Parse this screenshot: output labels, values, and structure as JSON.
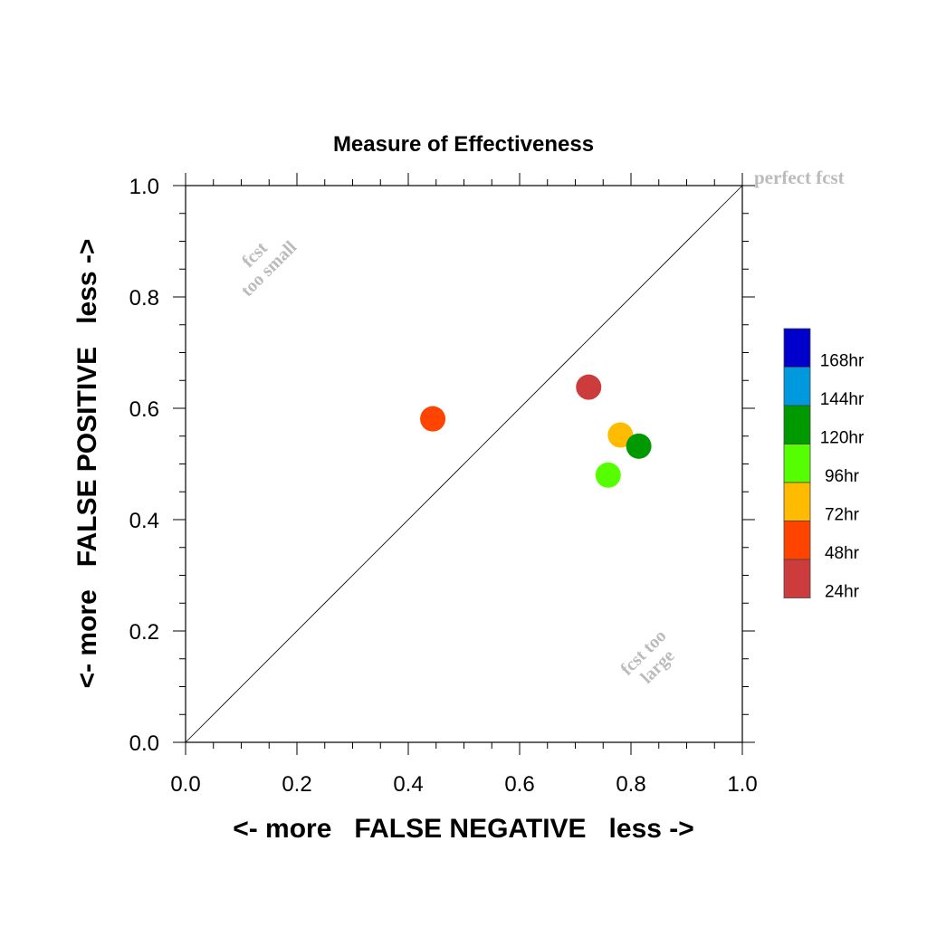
{
  "chart_data": {
    "type": "scatter",
    "title": "Measure of Effectiveness",
    "xlabel": "<- more   FALSE NEGATIVE   less ->",
    "ylabel": "<- more   FALSE POSITIVE   less ->",
    "xlim": [
      0.0,
      1.0
    ],
    "ylim": [
      0.0,
      1.0
    ],
    "xticks": [
      "0.0",
      "0.2",
      "0.4",
      "0.6",
      "0.8",
      "1.0"
    ],
    "yticks": [
      "0.0",
      "0.2",
      "0.4",
      "0.6",
      "0.8",
      "1.0"
    ],
    "grid": false,
    "reference_line": {
      "from": [
        0,
        0
      ],
      "to": [
        1,
        1
      ]
    },
    "annotations": {
      "perfect": "perfect fcst",
      "too_small_line1": "fcst",
      "too_small_line2": "too small",
      "too_large_line1": "fcst too",
      "too_large_line2": "large"
    },
    "points": [
      {
        "x": 0.724,
        "y": 0.638,
        "color": "#cc3c3c"
      },
      {
        "x": 0.444,
        "y": 0.581,
        "color": "#ff4400"
      },
      {
        "x": 0.781,
        "y": 0.552,
        "color": "#ffbb00"
      },
      {
        "x": 0.759,
        "y": 0.48,
        "color": "#55ff00"
      },
      {
        "x": 0.814,
        "y": 0.532,
        "color": "#009900"
      }
    ],
    "legend": {
      "placement": "right",
      "entries": [
        {
          "label": "168hr",
          "color": "#0000cc"
        },
        {
          "label": "144hr",
          "color": "#0099dd"
        },
        {
          "label": "120hr",
          "color": "#009900"
        },
        {
          "label": "96hr",
          "color": "#55ff00"
        },
        {
          "label": "72hr",
          "color": "#ffbb00"
        },
        {
          "label": "48hr",
          "color": "#ff4400"
        },
        {
          "label": "24hr",
          "color": "#cc3c3c"
        }
      ]
    }
  }
}
